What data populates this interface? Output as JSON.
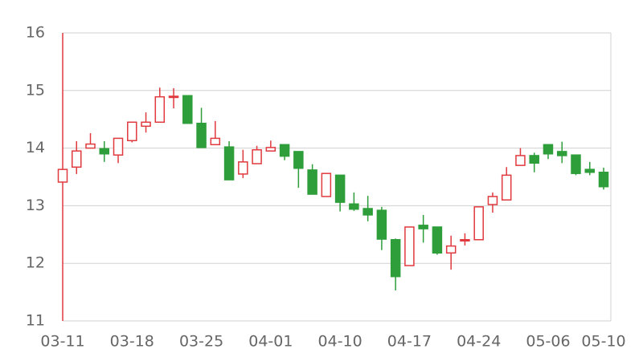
{
  "chart_data": {
    "type": "candlestick",
    "categories": [
      "03-11",
      null,
      null,
      null,
      null,
      "03-18",
      null,
      null,
      null,
      null,
      "03-25",
      null,
      null,
      null,
      null,
      "04-01",
      null,
      null,
      null,
      null,
      "04-10",
      null,
      null,
      null,
      null,
      "04-17",
      null,
      null,
      null,
      null,
      "04-24",
      null,
      null,
      null,
      null,
      "05-06",
      null,
      null,
      null,
      "05-10"
    ],
    "series": [
      {
        "up_color": "#e0393e",
        "down_color": "#2e9e3a",
        "open": [
          13.41,
          13.67,
          14.0,
          13.99,
          13.88,
          14.13,
          14.38,
          14.45,
          14.88,
          14.91,
          14.43,
          14.06,
          14.02,
          13.55,
          13.73,
          13.95,
          14.06,
          13.94,
          13.62,
          13.16,
          13.53,
          13.03,
          12.95,
          12.92,
          12.41,
          11.96,
          12.66,
          12.63,
          12.18,
          12.39,
          12.41,
          13.02,
          13.1,
          13.7,
          13.87,
          14.06,
          13.94,
          13.88,
          13.63,
          13.58
        ],
        "high": [
          16,
          14.12,
          14.26,
          14.12,
          14.17,
          14.45,
          14.62,
          15.05,
          15.04,
          14.91,
          14.7,
          14.47,
          14.12,
          13.97,
          14.04,
          14.13,
          14.06,
          13.94,
          13.72,
          13.56,
          13.53,
          13.23,
          13.17,
          12.98,
          12.43,
          12.63,
          12.84,
          12.63,
          12.48,
          12.52,
          12.98,
          13.23,
          13.67,
          14.0,
          13.92,
          14.06,
          14.11,
          13.88,
          13.76,
          13.66
        ],
        "low": [
          11,
          13.55,
          14.0,
          13.76,
          13.74,
          14.1,
          14.27,
          14.45,
          14.69,
          14.43,
          14.01,
          14.06,
          13.45,
          13.48,
          13.73,
          13.95,
          13.79,
          13.31,
          13.2,
          13.16,
          12.9,
          12.91,
          12.73,
          12.23,
          11.53,
          11.96,
          12.36,
          12.15,
          11.89,
          12.31,
          12.41,
          12.88,
          13.1,
          13.7,
          13.58,
          13.81,
          13.74,
          13.53,
          13.53,
          13.28
        ],
        "close": [
          13.63,
          13.95,
          14.07,
          13.9,
          14.17,
          14.45,
          14.45,
          14.89,
          14.9,
          14.43,
          14.01,
          14.17,
          13.45,
          13.76,
          13.97,
          14.01,
          13.86,
          13.65,
          13.2,
          13.56,
          13.06,
          12.94,
          12.84,
          12.42,
          11.77,
          12.63,
          12.6,
          12.18,
          12.3,
          12.41,
          12.98,
          13.16,
          13.53,
          13.87,
          13.74,
          13.9,
          13.87,
          13.56,
          13.58,
          13.33
        ]
      }
    ],
    "ylim": [
      11,
      16
    ],
    "yticks": [
      11,
      12,
      13,
      14,
      15,
      16
    ],
    "grid": true
  }
}
